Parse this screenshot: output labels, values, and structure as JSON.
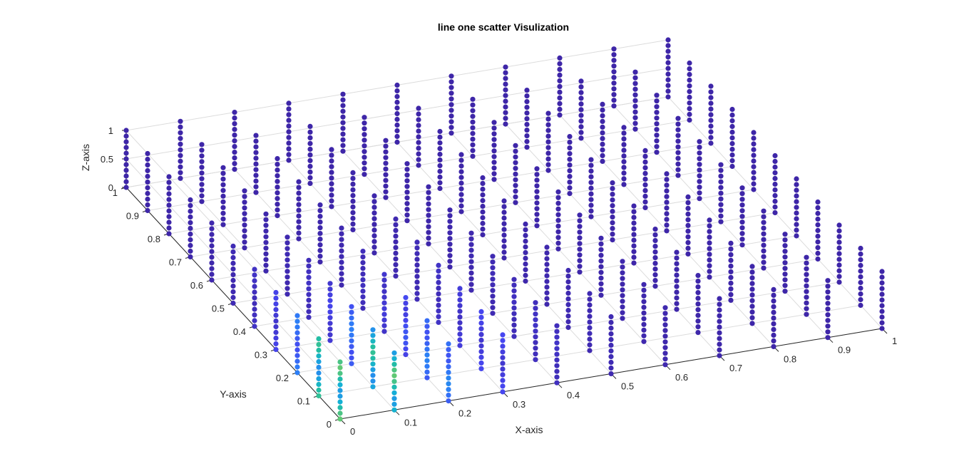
{
  "chart_data": {
    "type": "scatter",
    "dimensions": "3d",
    "title": "line one scatter Visulization",
    "xlabel": "X-axis",
    "ylabel": "Y-axis",
    "zlabel": "Z-axis",
    "xlim": [
      0,
      1
    ],
    "ylim": [
      0,
      1
    ],
    "zlim": [
      0,
      1
    ],
    "xticks": [
      "0",
      "0.1",
      "0.2",
      "0.3",
      "0.4",
      "0.5",
      "0.6",
      "0.7",
      "0.8",
      "0.9",
      "1"
    ],
    "yticks": [
      "0",
      "0.1",
      "0.2",
      "0.3",
      "0.4",
      "0.5",
      "0.6",
      "0.7",
      "0.8",
      "0.9",
      "1"
    ],
    "zticks": [
      "0",
      "0.5",
      "1"
    ],
    "grid": true,
    "colormap": "parula",
    "point_layout": "vertical columns of points at each (x, y) grid node, z sampled from 0 to 1",
    "x_nodes": [
      0,
      0.1,
      0.2,
      0.3,
      0.4,
      0.5,
      0.6,
      0.7,
      0.8,
      0.9,
      1
    ],
    "y_nodes": [
      0,
      0.1,
      0.2,
      0.3,
      0.4,
      0.5,
      0.6,
      0.7,
      0.8,
      0.9,
      1
    ],
    "z_samples": [
      0,
      0.1,
      0.2,
      0.3,
      0.4,
      0.5,
      0.6,
      0.7,
      0.8,
      0.9,
      1
    ],
    "colors": {
      "low": "#3e26a8",
      "mid_low": "#2d7ef7",
      "mid": "#20b3bd",
      "mid_high": "#7ccc61",
      "high": "#f9fb0e",
      "orange": "#f8b43a"
    }
  }
}
